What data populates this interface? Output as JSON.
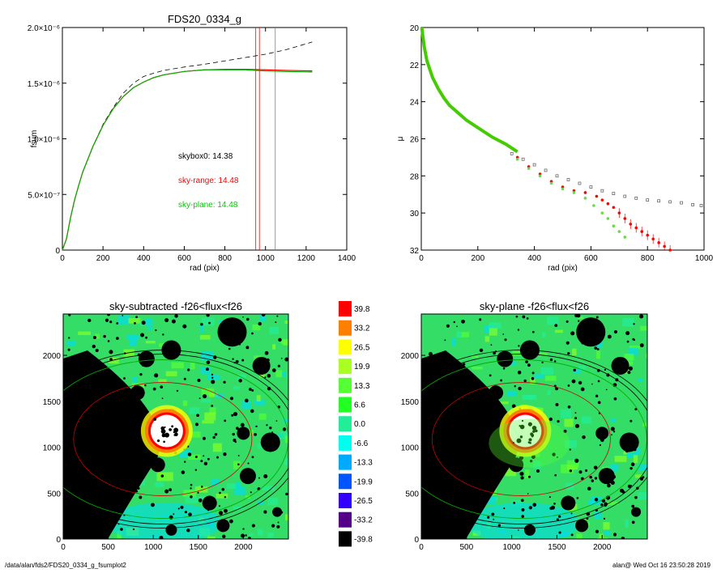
{
  "footer": {
    "path": "/data/alan/fds2/FDS20_0334_g_fsumplot2",
    "stamp": "alan@  Wed Oct 16 23:50:28 2019"
  },
  "chart_data": [
    {
      "type": "line",
      "title": "FDS20_0334_g",
      "xlabel": "rad (pix)",
      "ylabel": "fsum",
      "xlim": [
        0,
        1400
      ],
      "ylim": [
        0,
        2e-06
      ],
      "xticks": [
        "0",
        "200",
        "400",
        "600",
        "800",
        "1000",
        "1200",
        "1400"
      ],
      "yticks": [
        "0",
        "5.0×10⁻⁷",
        "1.0×10⁻⁶",
        "1.5×10⁻⁶",
        "2.0×10⁻⁶"
      ],
      "ytick_values": [
        0,
        5e-07,
        1e-06,
        1.5e-06,
        2e-06
      ],
      "annotations": [
        {
          "text": "skybox0: 14.38",
          "color": "#000000"
        },
        {
          "text": "sky-range: 14.48",
          "color": "#ff0000"
        },
        {
          "text": "sky-plane: 14.48",
          "color": "#00cc00"
        }
      ],
      "vlines": [
        {
          "x": 952,
          "color": "#ff0000"
        },
        {
          "x": 970,
          "color": "#ff0000"
        },
        {
          "x": 1048,
          "color": "#808080"
        }
      ],
      "x": [
        0,
        20,
        40,
        60,
        80,
        100,
        150,
        200,
        250,
        300,
        350,
        400,
        450,
        500,
        600,
        700,
        800,
        900,
        1000,
        1100,
        1230
      ],
      "series": [
        {
          "style": "dashed",
          "color": "#000000",
          "y": [
            0,
            1e-07,
            2.9e-07,
            4.5e-07,
            5.8e-07,
            7e-07,
            9.3e-07,
            1.13e-06,
            1.28e-06,
            1.41e-06,
            1.5e-06,
            1.56e-06,
            1.59e-06,
            1.615e-06,
            1.645e-06,
            1.67e-06,
            1.7e-06,
            1.73e-06,
            1.76e-06,
            1.8e-06,
            1.87e-06
          ]
        },
        {
          "style": "solid",
          "color": "#ff0000",
          "y": [
            0,
            1e-07,
            2.9e-07,
            4.5e-07,
            5.8e-07,
            7e-07,
            9.3e-07,
            1.12e-06,
            1.27e-06,
            1.38e-06,
            1.46e-06,
            1.51e-06,
            1.55e-06,
            1.575e-06,
            1.605e-06,
            1.62e-06,
            1.625e-06,
            1.625e-06,
            1.62e-06,
            1.615e-06,
            1.61e-06
          ]
        },
        {
          "style": "solid",
          "color": "#00b000",
          "y": [
            0,
            1e-07,
            2.9e-07,
            4.5e-07,
            5.8e-07,
            7e-07,
            9.3e-07,
            1.12e-06,
            1.27e-06,
            1.38e-06,
            1.46e-06,
            1.51e-06,
            1.55e-06,
            1.575e-06,
            1.605e-06,
            1.62e-06,
            1.62e-06,
            1.62e-06,
            1.61e-06,
            1.605e-06,
            1.6e-06
          ]
        }
      ]
    },
    {
      "type": "scatter",
      "xlabel": "rad (pix)",
      "ylabel": "μ",
      "xlim": [
        0,
        1000
      ],
      "ylim": [
        20,
        32
      ],
      "inverted_y": true,
      "xticks": [
        "0",
        "200",
        "400",
        "600",
        "800",
        "1000"
      ],
      "yticks": [
        "20",
        "22",
        "24",
        "26",
        "28",
        "30",
        "32"
      ],
      "series": [
        {
          "marker": "open-square",
          "color": "#555555",
          "x": [
            320,
            360,
            400,
            440,
            480,
            520,
            560,
            600,
            640,
            680,
            720,
            760,
            800,
            840,
            880,
            920,
            960,
            990
          ],
          "y": [
            26.8,
            27.1,
            27.4,
            27.7,
            28.0,
            28.2,
            28.4,
            28.6,
            28.8,
            28.95,
            29.1,
            29.2,
            29.3,
            29.35,
            29.4,
            29.45,
            29.55,
            29.6
          ]
        },
        {
          "marker": "dot",
          "color": "#ff0000",
          "x": [
            340,
            380,
            420,
            460,
            500,
            540,
            580,
            620,
            640,
            660,
            680,
            700,
            720,
            740,
            760,
            780,
            800,
            820,
            840,
            860,
            880
          ],
          "y": [
            27.0,
            27.5,
            27.9,
            28.3,
            28.6,
            28.8,
            28.9,
            29.1,
            29.3,
            29.5,
            29.7,
            30.0,
            30.3,
            30.6,
            30.8,
            31.0,
            31.2,
            31.4,
            31.6,
            31.8,
            32.0
          ]
        },
        {
          "marker": "dot",
          "color": "#66dd44",
          "x": [
            340,
            380,
            420,
            460,
            500,
            540,
            580,
            610,
            640,
            660,
            680,
            700,
            720
          ],
          "y": [
            27.1,
            27.6,
            28.0,
            28.4,
            28.7,
            28.9,
            29.2,
            29.6,
            30.0,
            30.3,
            30.7,
            31.0,
            31.3
          ]
        }
      ],
      "profile_curve": {
        "color": "#44cc00",
        "x": [
          2,
          5,
          10,
          20,
          40,
          60,
          80,
          100,
          130,
          160,
          200,
          250,
          300,
          340
        ],
        "y": [
          20.0,
          20.4,
          21.0,
          21.8,
          22.7,
          23.3,
          23.8,
          24.2,
          24.6,
          25.0,
          25.4,
          25.9,
          26.3,
          26.7
        ]
      }
    },
    {
      "type": "heatmap",
      "title": "sky-subtracted -f26<flux<f26",
      "xticks": [
        "0",
        "500",
        "1000",
        "1500",
        "2000"
      ],
      "yticks": [
        "0",
        "500",
        "1000",
        "1500",
        "2000"
      ],
      "extent": [
        0,
        2500,
        0,
        2450
      ]
    },
    {
      "type": "heatmap",
      "title": "sky-plane -f26<flux<f26",
      "xticks": [
        "0",
        "500",
        "1000",
        "1500",
        "2000"
      ],
      "yticks": [
        "0",
        "500",
        "1000",
        "1500",
        "2000"
      ],
      "extent": [
        0,
        2500,
        0,
        2450
      ]
    },
    {
      "type": "colorbar",
      "labels": [
        "39.8",
        "33.2",
        "26.5",
        "19.9",
        "13.3",
        "6.6",
        "0.0",
        "-6.6",
        "-13.3",
        "-19.9",
        "-26.5",
        "-33.2",
        "-39.8"
      ],
      "colors": [
        "#ff0000",
        "#ff8000",
        "#ffff00",
        "#aaff22",
        "#55ff33",
        "#22ff22",
        "#22ee99",
        "#00ffee",
        "#00aaff",
        "#0055ff",
        "#3300ff",
        "#550088",
        "#000000"
      ]
    }
  ]
}
